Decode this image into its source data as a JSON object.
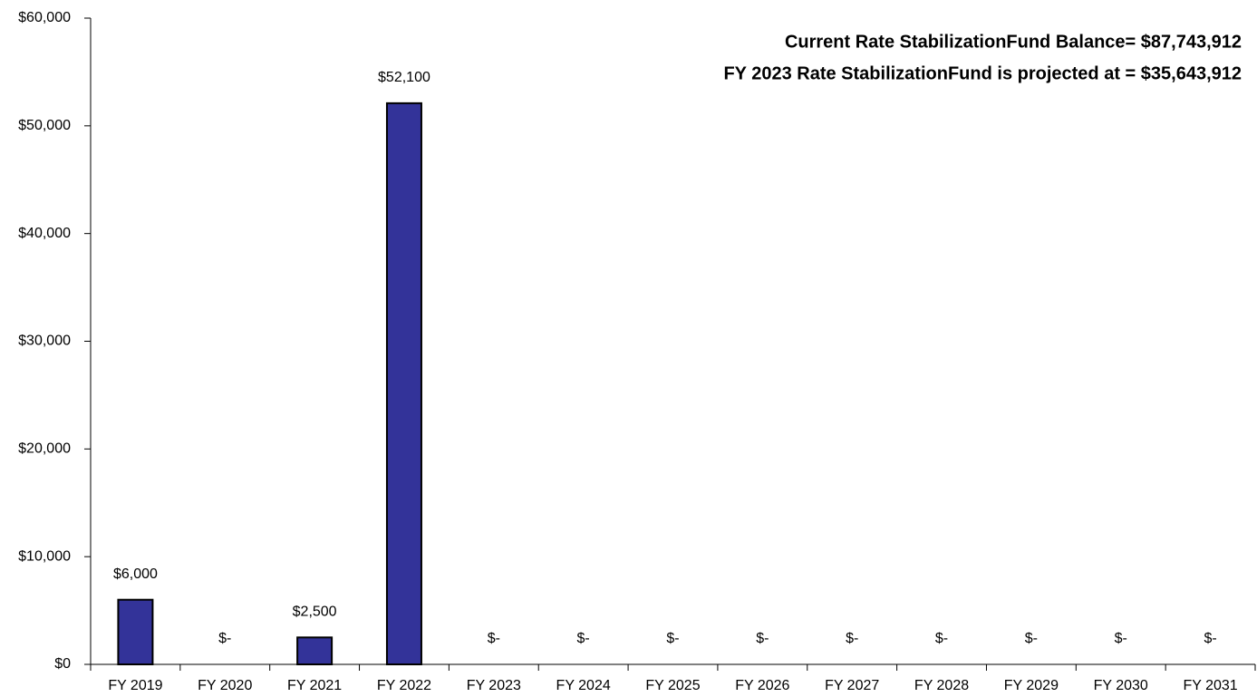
{
  "chart_data": {
    "type": "bar",
    "annotations": [
      "Current  Rate StabilizationFund Balance= $87,743,912",
      "FY 2023  Rate StabilizationFund is projected at = $35,643,912"
    ],
    "categories": [
      "FY 2019",
      "FY 2020",
      "FY 2021",
      "FY 2022",
      "FY 2023",
      "FY 2024",
      "FY 2025",
      "FY 2026",
      "FY 2027",
      "FY 2028",
      "FY 2029",
      "FY 2030",
      "FY 2031"
    ],
    "values": [
      6000,
      0,
      2500,
      52100,
      0,
      0,
      0,
      0,
      0,
      0,
      0,
      0,
      0
    ],
    "value_labels": [
      "$6,000",
      "$-",
      "$2,500",
      "$52,100",
      "$-",
      "$-",
      "$-",
      "$-",
      "$-",
      "$-",
      "$-",
      "$-",
      "$-"
    ],
    "color": "#333399",
    "ylim": [
      0,
      60000
    ],
    "yticks": [
      {
        "value": 0,
        "label": "$0"
      },
      {
        "value": 10000,
        "label": "$10,000"
      },
      {
        "value": 20000,
        "label": "$20,000"
      },
      {
        "value": 30000,
        "label": "$30,000"
      },
      {
        "value": 40000,
        "label": "$40,000"
      },
      {
        "value": 50000,
        "label": "$50,000"
      },
      {
        "value": 60000,
        "label": "$60,000"
      }
    ],
    "grid": false
  }
}
